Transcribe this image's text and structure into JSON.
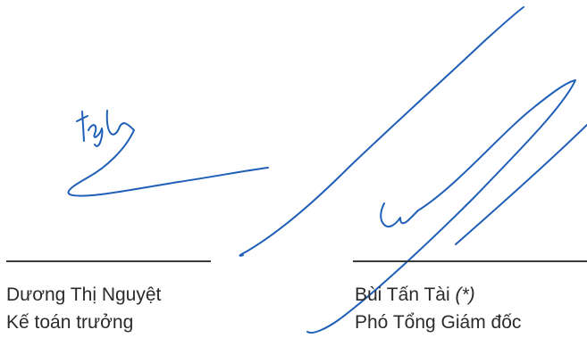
{
  "signers": [
    {
      "name": "Dương Thị Nguyệt",
      "title": "Kế toán trưởng",
      "note": ""
    },
    {
      "name": "Bùi Tấn Tài",
      "title": "Phó Tổng Giám đốc",
      "note": "(*)"
    }
  ],
  "colors": {
    "ink": "#1f5fb8",
    "text": "#2b2b2b",
    "rule": "#3a3a3a"
  }
}
